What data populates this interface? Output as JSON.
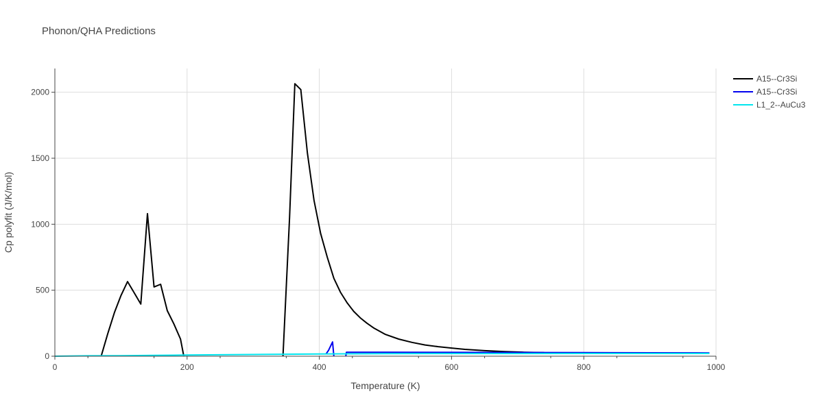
{
  "chart_data": {
    "type": "line",
    "title": "Phonon/QHA Predictions",
    "xlabel": "Temperature (K)",
    "ylabel": "Cp polyfit (J/K/mol)",
    "xlim": [
      0,
      1000
    ],
    "ylim": [
      0,
      2180
    ],
    "xticks": [
      0,
      200,
      400,
      600,
      800,
      1000
    ],
    "xtick_labels": [
      "0",
      "200",
      "400",
      "600",
      "800",
      "1000"
    ],
    "yticks": [
      0,
      500,
      1000,
      1500,
      2000
    ],
    "ytick_labels": [
      "0",
      "500",
      "1000",
      "1500",
      "2000"
    ],
    "grid": true,
    "legend_position": "top-right",
    "series": [
      {
        "name": "A15--Cr3Si",
        "color": "#000000",
        "segments": [
          [
            [
              70,
              0
            ],
            [
              80,
              170
            ],
            [
              90,
              330
            ],
            [
              100,
              460
            ],
            [
              110,
              565
            ],
            [
              120,
              480
            ],
            [
              130,
              395
            ],
            [
              140,
              1080
            ],
            [
              150,
              525
            ],
            [
              160,
              545
            ],
            [
              170,
              345
            ],
            [
              180,
              245
            ],
            [
              190,
              130
            ],
            [
              195,
              0
            ]
          ],
          [
            [
              345,
              0
            ],
            [
              355,
              1050
            ],
            [
              363,
              2065
            ],
            [
              372,
              2020
            ],
            [
              382,
              1540
            ],
            [
              392,
              1180
            ],
            [
              402,
              930
            ],
            [
              412,
              750
            ],
            [
              422,
              590
            ],
            [
              432,
              485
            ],
            [
              442,
              405
            ],
            [
              452,
              340
            ],
            [
              462,
              290
            ],
            [
              472,
              250
            ],
            [
              482,
              215
            ],
            [
              500,
              165
            ],
            [
              520,
              130
            ],
            [
              540,
              105
            ],
            [
              560,
              85
            ],
            [
              580,
              72
            ],
            [
              600,
              62
            ],
            [
              620,
              52
            ],
            [
              650,
              42
            ],
            [
              680,
              35
            ],
            [
              710,
              30
            ],
            [
              740,
              27
            ]
          ]
        ]
      },
      {
        "name": "A15--Cr3Si",
        "color": "#0000ee",
        "segments": [
          [
            [
              410,
              15
            ],
            [
              414,
              45
            ],
            [
              420,
              108
            ],
            [
              422,
              0
            ]
          ],
          [
            [
              440,
              0
            ],
            [
              441,
              30
            ],
            [
              500,
              30
            ],
            [
              600,
              29
            ],
            [
              700,
              28
            ],
            [
              800,
              27
            ],
            [
              900,
              26
            ],
            [
              990,
              25
            ]
          ]
        ]
      },
      {
        "name": "L1_2--AuCu3",
        "color": "#00e5ee",
        "segments": [
          [
            [
              0,
              0
            ],
            [
              50,
              3
            ],
            [
              100,
              4
            ],
            [
              150,
              6
            ],
            [
              200,
              9
            ],
            [
              250,
              11
            ],
            [
              300,
              13
            ],
            [
              350,
              15
            ],
            [
              400,
              17
            ],
            [
              450,
              18
            ],
            [
              500,
              19
            ],
            [
              600,
              20
            ],
            [
              700,
              20
            ],
            [
              800,
              21
            ],
            [
              900,
              21
            ],
            [
              990,
              21
            ]
          ]
        ]
      }
    ]
  }
}
